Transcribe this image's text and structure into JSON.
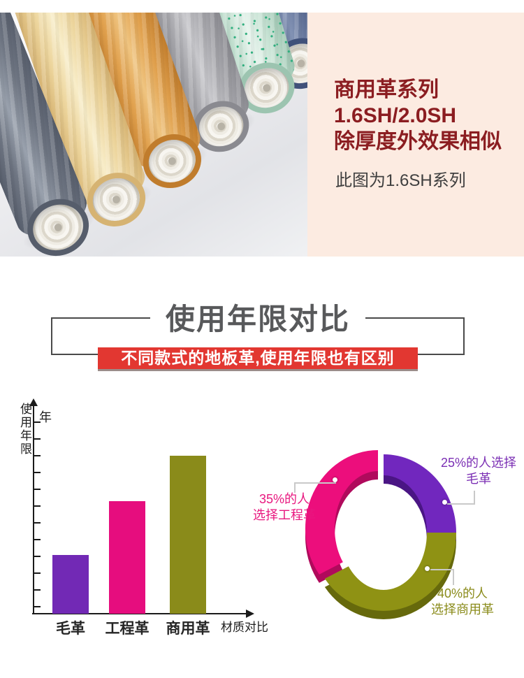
{
  "hero": {
    "panel": {
      "line1": "商用革系列",
      "line2": "1.6SH/2.0SH",
      "line3": "除厚度外效果相似",
      "note": "此图为1.6SH系列",
      "bg_color": "#fcebe1",
      "title_color": "#8b1d21"
    },
    "photo": {
      "description": "六卷地板革（商用革）斜放展示",
      "rolls": [
        {
          "name": "dark-slate-gray",
          "edge": "#565d6b",
          "mid": "#6e7582",
          "light": "#99a1ad"
        },
        {
          "name": "cream-yellow",
          "edge": "#d6b372",
          "mid": "#ecd49b",
          "light": "#f8edc9"
        },
        {
          "name": "orange",
          "edge": "#c07c2c",
          "mid": "#e0a04d",
          "light": "#efc480"
        },
        {
          "name": "gray",
          "edge": "#8a8a90",
          "mid": "#a6a6ab",
          "light": "#c8c8cc"
        },
        {
          "name": "mint-speckled",
          "edge": "#9cc4b0",
          "mid": "#c6e2d3",
          "light": "#e6f3ec",
          "speckle": "#2fae7e"
        },
        {
          "name": "dark-blue",
          "edge": "#40517a",
          "mid": "#5a6b92",
          "light": "#8292b4"
        }
      ]
    }
  },
  "section_title": {
    "title": "使用年限对比",
    "subtitle": "不同款式的地板革,使用年限也有区别",
    "subtitle_bg": "#e23731",
    "title_color": "#58595b"
  },
  "chart_data": [
    {
      "type": "bar",
      "title": "使用年限对比",
      "categories": [
        "毛革",
        "工程革",
        "商用革"
      ],
      "values": [
        3.5,
        6.7,
        9.4
      ],
      "unit": "年",
      "ylabel": "使用年限",
      "y_axis_unit": "年",
      "xlabel": "材质对比",
      "colors": [
        "#7229b5",
        "#e60d7e",
        "#8a8b1a"
      ],
      "y_ticks": 12,
      "grid": false,
      "note": "y轴无数值刻度，values为按刻度估算的使用年限(年)"
    },
    {
      "type": "pie",
      "donut": true,
      "segments": [
        {
          "label": "25%的人选择毛革",
          "line1": "25%的人选择",
          "line2": "毛革",
          "value": 25,
          "color": "#7127be",
          "dark": "#4a1584",
          "text_color": "#7b2fb4",
          "exploded": false
        },
        {
          "label": "40%的人选择商用革",
          "line1": "40%的人",
          "line2": "选择商用革",
          "value": 40,
          "color": "#8f9214",
          "dark": "#66690c",
          "text_color": "#8a8b1a",
          "exploded": false
        },
        {
          "label": "35%的人选择工程革",
          "line1": "35%的人",
          "line2": "选择工程革",
          "value": 35,
          "color": "#ec0e7c",
          "dark": "#b00a5c",
          "text_color": "#e8177f",
          "exploded": true
        }
      ],
      "start_angle_deg": 0,
      "legend_position": "callout-labels"
    }
  ]
}
